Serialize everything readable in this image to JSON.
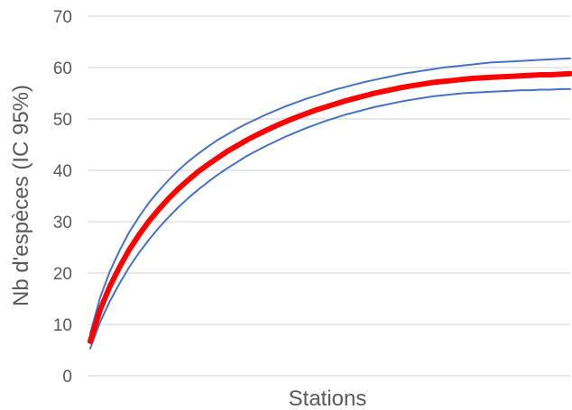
{
  "chart_data": {
    "type": "line",
    "title": "",
    "xlabel": "Stations",
    "ylabel": "Nb d'espèces (IC 95%)",
    "ylim": [
      0,
      70
    ],
    "yticks": [
      "0",
      "10",
      "20",
      "30",
      "40",
      "50",
      "60",
      "70"
    ],
    "grid": true,
    "legend": "none",
    "x": [
      1,
      2,
      3,
      4,
      5,
      6,
      7,
      8,
      9,
      10,
      11,
      12,
      13,
      14,
      15,
      16,
      17,
      18,
      19,
      20,
      21,
      22,
      23,
      24,
      25,
      26,
      27,
      28,
      29,
      30,
      31,
      32,
      33,
      34,
      35,
      36,
      37,
      38,
      39,
      40,
      41,
      42,
      43,
      44,
      45,
      46,
      47,
      48,
      49,
      50
    ],
    "series": [
      {
        "color": "#4472c4",
        "width": 2,
        "values": [
          8.2,
          15.2,
          20.3,
          24.4,
          28.0,
          31.0,
          33.7,
          36.0,
          38.1,
          40.0,
          41.7,
          43.2,
          44.6,
          45.9,
          47.0,
          48.1,
          49.1,
          50.0,
          50.9,
          51.7,
          52.5,
          53.2,
          53.9,
          54.5,
          55.1,
          55.7,
          56.2,
          56.7,
          57.2,
          57.6,
          58.0,
          58.4,
          58.8,
          59.1,
          59.4,
          59.7,
          60.0,
          60.2,
          60.4,
          60.6,
          60.8,
          61.0,
          61.1,
          61.2,
          61.3,
          61.4,
          61.5,
          61.6,
          61.7,
          61.8
        ]
      },
      {
        "color": "#4472c4",
        "width": 2,
        "values": [
          5.3,
          10.4,
          14.5,
          18.0,
          21.2,
          24.0,
          26.5,
          28.8,
          30.9,
          32.8,
          34.6,
          36.2,
          37.7,
          39.1,
          40.4,
          41.6,
          42.8,
          43.8,
          44.8,
          45.7,
          46.6,
          47.4,
          48.2,
          48.9,
          49.6,
          50.2,
          50.8,
          51.3,
          51.8,
          52.3,
          52.7,
          53.1,
          53.5,
          53.8,
          54.1,
          54.4,
          54.6,
          54.8,
          55.0,
          55.1,
          55.2,
          55.3,
          55.4,
          55.5,
          55.6,
          55.6,
          55.7,
          55.7,
          55.8,
          55.8
        ]
      },
      {
        "color": "#ff0000",
        "width": 6,
        "values": [
          6.7,
          12.8,
          17.4,
          21.2,
          24.6,
          27.5,
          30.1,
          32.4,
          34.5,
          36.4,
          38.1,
          39.7,
          41.1,
          42.4,
          43.7,
          44.8,
          45.9,
          46.9,
          47.8,
          48.7,
          49.5,
          50.3,
          51.0,
          51.7,
          52.3,
          52.9,
          53.5,
          54.0,
          54.5,
          55.0,
          55.4,
          55.8,
          56.2,
          56.5,
          56.8,
          57.1,
          57.3,
          57.5,
          57.7,
          57.9,
          58.0,
          58.1,
          58.2,
          58.3,
          58.4,
          58.5,
          58.6,
          58.6,
          58.7,
          58.8
        ]
      }
    ]
  }
}
